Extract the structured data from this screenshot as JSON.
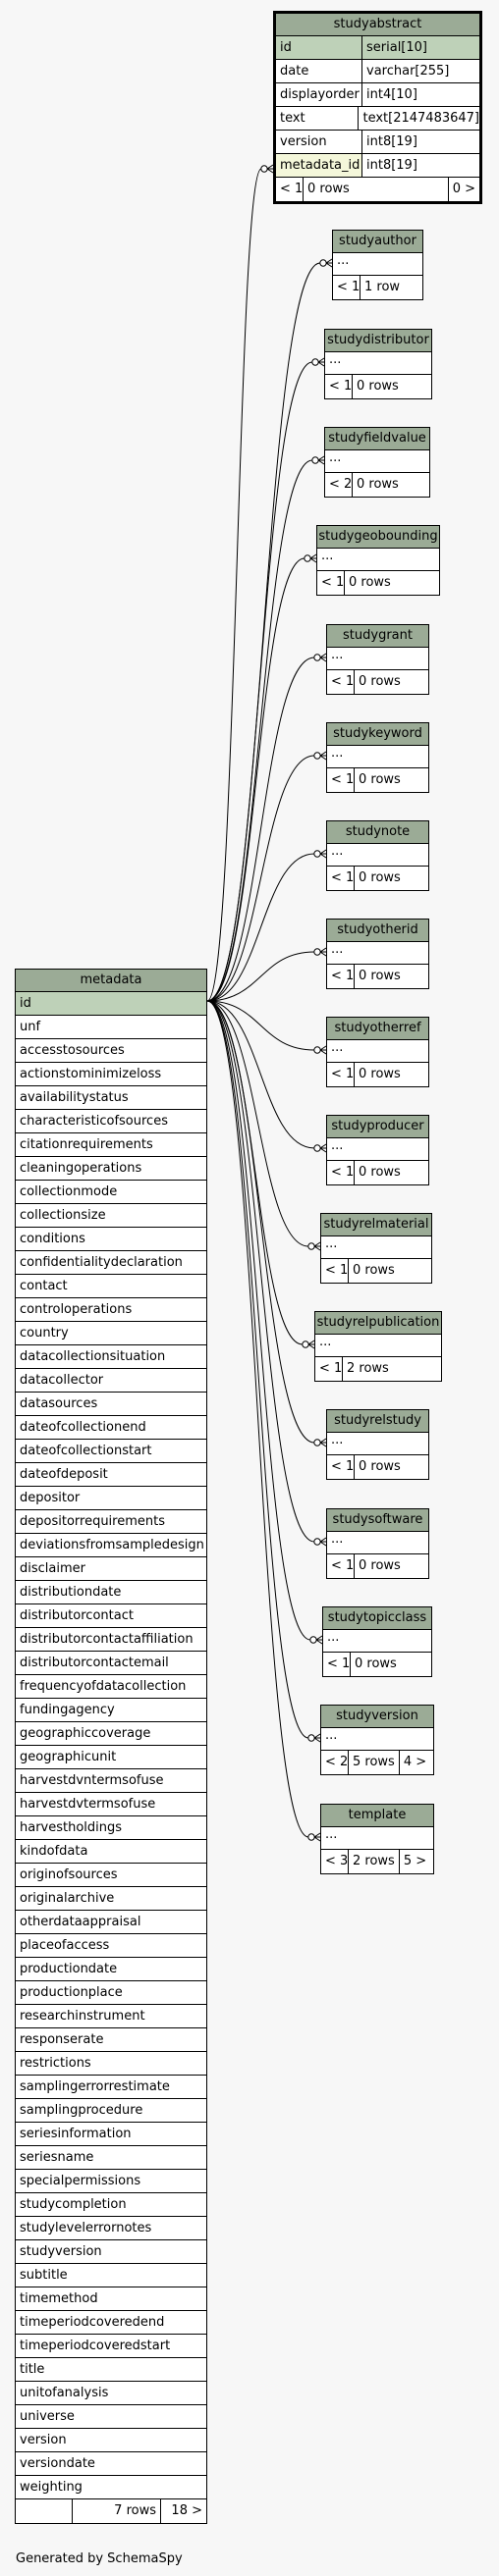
{
  "studyabstract": {
    "name": "studyabstract",
    "columns": [
      {
        "name": "id",
        "type": "serial[10]"
      },
      {
        "name": "date",
        "type": "varchar[255]"
      },
      {
        "name": "displayorder",
        "type": "int4[10]"
      },
      {
        "name": "text",
        "type": "text[2147483647]"
      },
      {
        "name": "version",
        "type": "int8[19]"
      },
      {
        "name": "metadata_id",
        "type": "int8[19]"
      }
    ],
    "footer": [
      "< 1",
      "0 rows",
      "0 >"
    ]
  },
  "children": [
    {
      "name": "studyauthor",
      "dots": "...",
      "footer": [
        "< 1",
        "1 row"
      ]
    },
    {
      "name": "studydistributor",
      "dots": "...",
      "footer": [
        "< 1",
        "0 rows"
      ]
    },
    {
      "name": "studyfieldvalue",
      "dots": "...",
      "footer": [
        "< 2",
        "0 rows"
      ]
    },
    {
      "name": "studygeobounding",
      "dots": "...",
      "footer": [
        "< 1",
        "0 rows"
      ]
    },
    {
      "name": "studygrant",
      "dots": "...",
      "footer": [
        "< 1",
        "0 rows"
      ]
    },
    {
      "name": "studykeyword",
      "dots": "...",
      "footer": [
        "< 1",
        "0 rows"
      ]
    },
    {
      "name": "studynote",
      "dots": "...",
      "footer": [
        "< 1",
        "0 rows"
      ]
    },
    {
      "name": "studyotherid",
      "dots": "...",
      "footer": [
        "< 1",
        "0 rows"
      ]
    },
    {
      "name": "studyotherref",
      "dots": "...",
      "footer": [
        "< 1",
        "0 rows"
      ]
    },
    {
      "name": "studyproducer",
      "dots": "...",
      "footer": [
        "< 1",
        "0 rows"
      ]
    },
    {
      "name": "studyrelmaterial",
      "dots": "...",
      "footer": [
        "< 1",
        "0 rows"
      ]
    },
    {
      "name": "studyrelpublication",
      "dots": "...",
      "footer": [
        "< 1",
        "2 rows"
      ]
    },
    {
      "name": "studyrelstudy",
      "dots": "...",
      "footer": [
        "< 1",
        "0 rows"
      ]
    },
    {
      "name": "studysoftware",
      "dots": "...",
      "footer": [
        "< 1",
        "0 rows"
      ]
    },
    {
      "name": "studytopicclass",
      "dots": "...",
      "footer": [
        "< 1",
        "0 rows"
      ]
    },
    {
      "name": "studyversion",
      "dots": "...",
      "footer": [
        "< 2",
        "5 rows",
        "4 >"
      ]
    },
    {
      "name": "template",
      "dots": "...",
      "footer": [
        "< 3",
        "2 rows",
        "5 >"
      ]
    }
  ],
  "metadata": {
    "name": "metadata",
    "columns": [
      "id",
      "unf",
      "accesstosources",
      "actionstominimizeloss",
      "availabilitystatus",
      "characteristicofsources",
      "citationrequirements",
      "cleaningoperations",
      "collectionmode",
      "collectionsize",
      "conditions",
      "confidentialitydeclaration",
      "contact",
      "controloperations",
      "country",
      "datacollectionsituation",
      "datacollector",
      "datasources",
      "dateofcollectionend",
      "dateofcollectionstart",
      "dateofdeposit",
      "depositor",
      "depositorrequirements",
      "deviationsfromsampledesign",
      "disclaimer",
      "distributiondate",
      "distributorcontact",
      "distributorcontactaffiliation",
      "distributorcontactemail",
      "frequencyofdatacollection",
      "fundingagency",
      "geographiccoverage",
      "geographicunit",
      "harvestdvntermsofuse",
      "harvestdvtermsofuse",
      "harvestholdings",
      "kindofdata",
      "originofsources",
      "originalarchive",
      "otherdataappraisal",
      "placeofaccess",
      "productiondate",
      "productionplace",
      "researchinstrument",
      "responserate",
      "restrictions",
      "samplingerrorrestimate",
      "samplingprocedure",
      "seriesinformation",
      "seriesname",
      "specialpermissions",
      "studycompletion",
      "studylevelerrornotes",
      "studyversion",
      "subtitle",
      "timemethod",
      "timeperiodcoveredend",
      "timeperiodcoveredstart",
      "title",
      "unitofanalysis",
      "universe",
      "version",
      "versiondate",
      "weighting"
    ],
    "footer": [
      "",
      "7 rows",
      "18 >"
    ]
  },
  "generated_by": "Generated by SchemaSpy"
}
